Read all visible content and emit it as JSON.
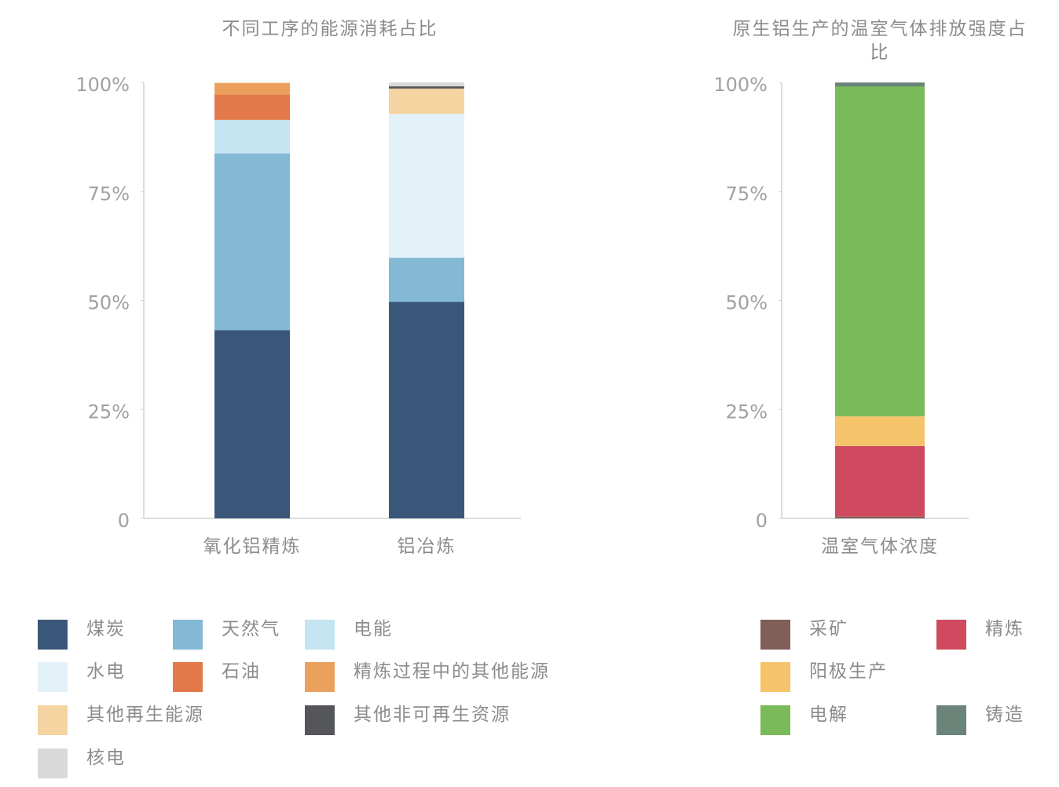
{
  "chart_data": [
    {
      "type": "stacked-bar",
      "title": "不同工序的能源消耗占比",
      "categories": [
        "氧化铝精炼",
        "铝冶炼"
      ],
      "ylim": [
        0,
        100
      ],
      "yticks": [
        0,
        {
          "value": 25,
          "label": "25%"
        },
        {
          "value": 50,
          "label": "50%"
        },
        {
          "value": 75,
          "label": "75%"
        },
        {
          "value": 100,
          "label": "100%"
        }
      ],
      "series": [
        {
          "name": "煤炭",
          "color": "#3a5779",
          "values": [
            43.2,
            49.7
          ]
        },
        {
          "name": "天然气",
          "color": "#84b9d6",
          "values": [
            40.5,
            10.1
          ]
        },
        {
          "name": "电能",
          "color": "#c5e4f2",
          "values": [
            7.7,
            0
          ]
        },
        {
          "name": "水电",
          "color": "#e3f1f9",
          "values": [
            0,
            33.0
          ]
        },
        {
          "name": "石油",
          "color": "#e3784a",
          "values": [
            5.8,
            0
          ]
        },
        {
          "name": "精炼过程中的其他能源",
          "color": "#eba15d",
          "values": [
            2.7,
            0
          ]
        },
        {
          "name": "其他再生能源",
          "color": "#f5d4a2",
          "values": [
            0,
            5.8
          ]
        },
        {
          "name": "其他非可再生资源",
          "color": "#555659",
          "values": [
            0,
            0.5
          ]
        },
        {
          "name": "核电",
          "color": "#d9d9d9",
          "values": [
            0,
            0.9
          ]
        }
      ]
    },
    {
      "type": "stacked-bar",
      "title": "原生铝生产的温室气体排放强度占比",
      "categories": [
        "温室气体浓度"
      ],
      "ylim": [
        0,
        100
      ],
      "yticks": [
        0,
        {
          "value": 25,
          "label": "25%"
        },
        {
          "value": 50,
          "label": "50%"
        },
        {
          "value": 75,
          "label": "75%"
        },
        {
          "value": 100,
          "label": "100%"
        }
      ],
      "series": [
        {
          "name": "采矿",
          "color": "#7f5f58",
          "values": [
            0.4
          ]
        },
        {
          "name": "精炼",
          "color": "#cf4a5f",
          "values": [
            16.2
          ]
        },
        {
          "name": "阳极生产",
          "color": "#f5c46a",
          "values": [
            6.8
          ]
        },
        {
          "name": "电解",
          "color": "#7aba58",
          "values": [
            75.7
          ]
        },
        {
          "name": "铸造",
          "color": "#6a8479",
          "values": [
            0.9
          ]
        }
      ]
    }
  ]
}
